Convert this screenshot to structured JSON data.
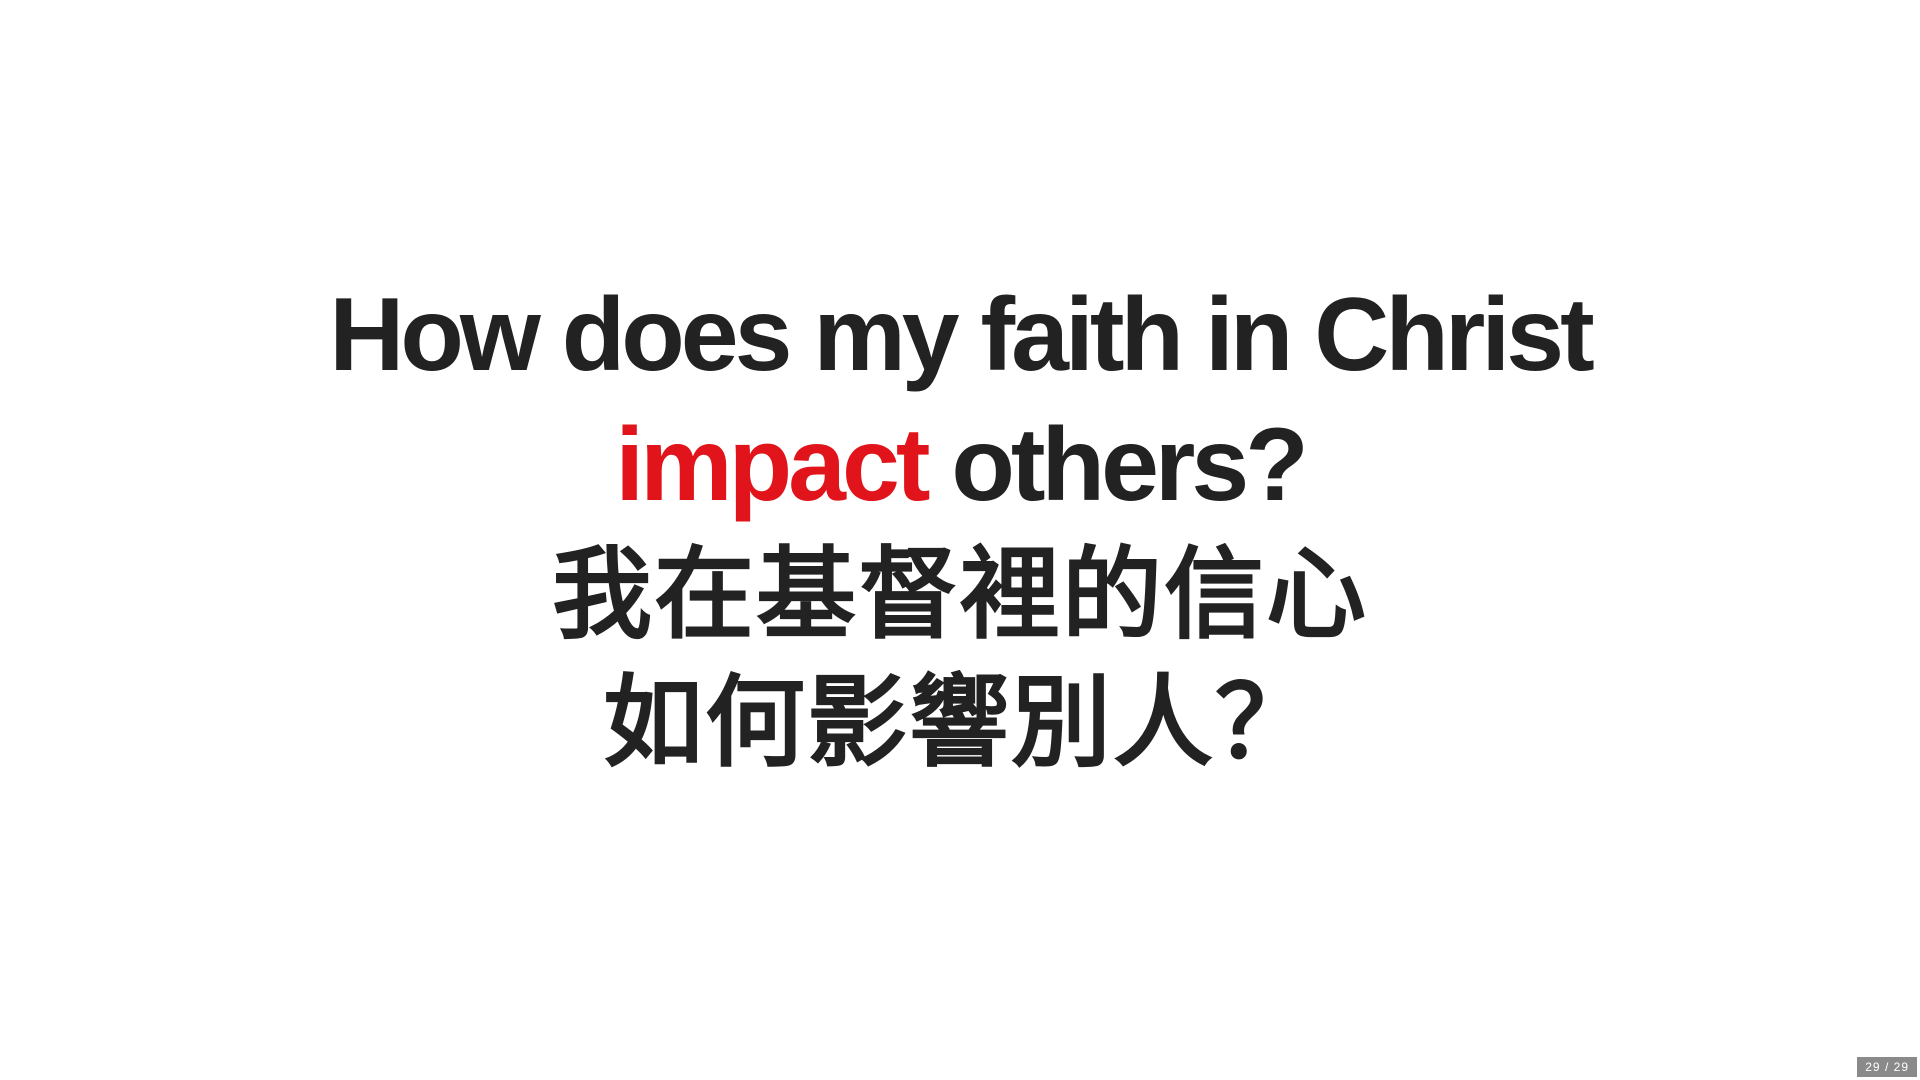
{
  "slide": {
    "title_en_line1": "How does my faith in Christ",
    "title_en_highlight": "impact",
    "title_en_line2_rest": "others?",
    "title_zh_line1": "我在基督裡的信心",
    "title_zh_line2": "如何影響別人？",
    "highlight_color": "#e0141a",
    "text_color": "#222222"
  },
  "pager": {
    "current": "29",
    "separator": "/",
    "total": "29"
  }
}
